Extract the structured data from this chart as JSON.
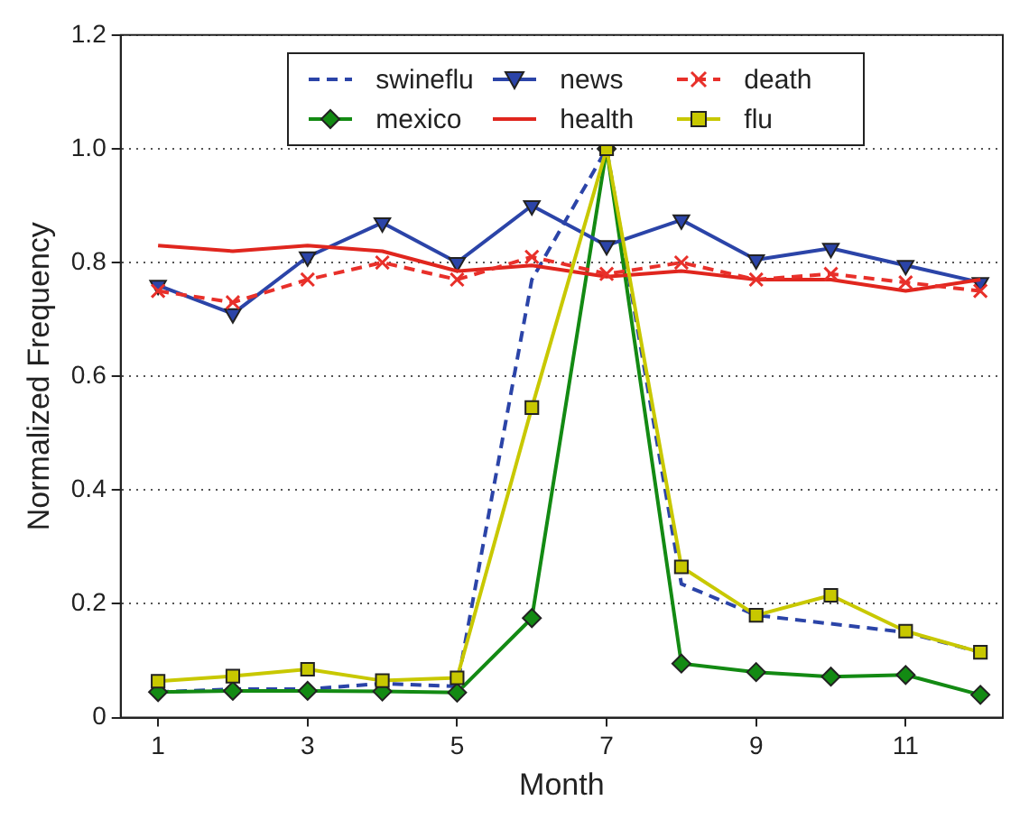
{
  "chart_data": {
    "type": "line",
    "xlabel": "Month",
    "ylabel": "Normalized Frequency",
    "x": [
      1,
      2,
      3,
      4,
      5,
      6,
      7,
      8,
      9,
      10,
      11,
      12
    ],
    "xlim": [
      0.5,
      12.3
    ],
    "xticks": [
      1,
      3,
      5,
      7,
      9,
      11
    ],
    "ylim": [
      0,
      1.2
    ],
    "yticks": [
      0,
      0.2,
      0.4,
      0.6,
      0.8,
      {
        "value": 1,
        "label": "1.0"
      },
      1.2
    ],
    "grid": "y",
    "legend": "top",
    "series": [
      {
        "name": "swineflu",
        "color": "#2b44a8",
        "marker": "none",
        "line_style": "dashed",
        "values": [
          0.045,
          0.05,
          0.05,
          0.06,
          0.055,
          0.77,
          1.0,
          0.235,
          0.18,
          0.165,
          0.15,
          0.115
        ]
      },
      {
        "name": "mexico",
        "color": "#138a13",
        "marker": "diamond",
        "line_style": "solid",
        "values": [
          0.045,
          0.047,
          0.047,
          0.046,
          0.044,
          0.175,
          1.0,
          0.095,
          0.08,
          0.072,
          0.075,
          0.04
        ]
      },
      {
        "name": "news",
        "color": "#2b44a8",
        "marker": "triangle",
        "line_style": "solid",
        "values": [
          0.76,
          0.71,
          0.81,
          0.87,
          0.8,
          0.9,
          0.83,
          0.875,
          0.805,
          0.825,
          0.795,
          0.765
        ]
      },
      {
        "name": "health",
        "color": "#e0261e",
        "marker": "none",
        "line_style": "solid",
        "values": [
          0.83,
          0.82,
          0.83,
          0.82,
          0.785,
          0.795,
          0.775,
          0.785,
          0.77,
          0.77,
          0.75,
          0.77
        ]
      },
      {
        "name": "death",
        "color": "#e8302a",
        "marker": "cross",
        "line_style": "dashed",
        "values": [
          0.75,
          0.73,
          0.77,
          0.8,
          0.77,
          0.81,
          0.78,
          0.8,
          0.77,
          0.78,
          0.765,
          0.75
        ]
      },
      {
        "name": "flu",
        "color": "#c8c800",
        "marker": "square",
        "line_style": "solid",
        "values": [
          0.064,
          0.073,
          0.085,
          0.065,
          0.07,
          0.545,
          1.0,
          0.265,
          0.18,
          0.215,
          0.152,
          0.115
        ]
      }
    ]
  }
}
